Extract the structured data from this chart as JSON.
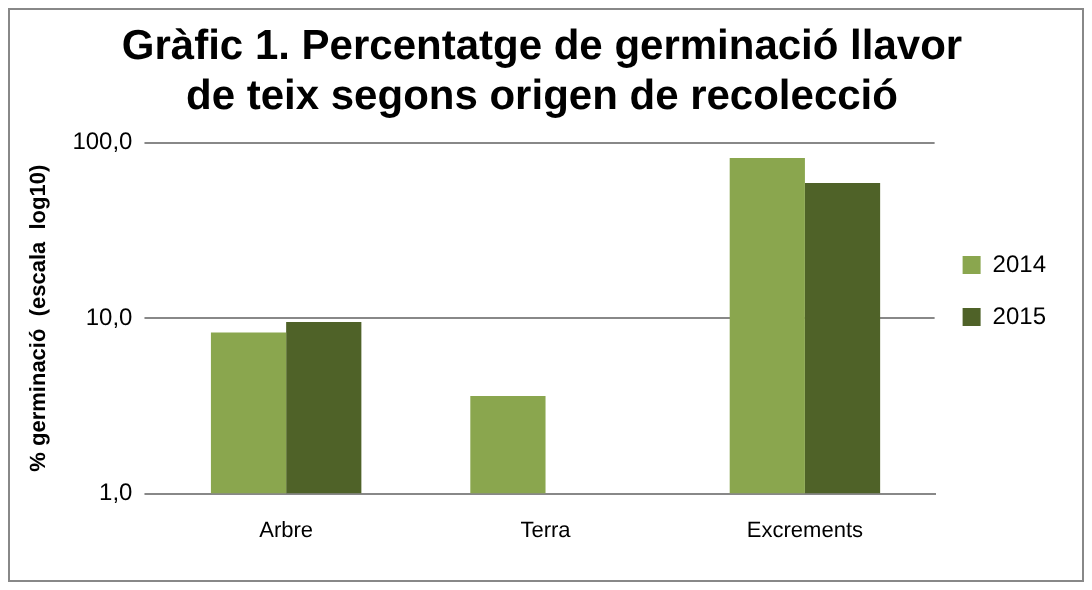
{
  "chart_data": {
    "type": "bar",
    "title": "Gràfic 1. Percentatge de germinació llavor\nde teix segons origen de recolecció",
    "ylabel": "% germinació  (escala  log10)",
    "categories": [
      "Arbre",
      "Terra",
      "Excrements"
    ],
    "series": [
      {
        "name": "2014",
        "color": "#8aa64e",
        "values": [
          8.3,
          3.6,
          82
        ]
      },
      {
        "name": "2015",
        "color": "#4f6228",
        "values": [
          9.5,
          null,
          59
        ]
      }
    ],
    "log": "y",
    "ylim": [
      1,
      100
    ],
    "yticks": [
      {
        "value": 1,
        "label": "1,0"
      },
      {
        "value": 10,
        "label": "10,0"
      },
      {
        "value": 100,
        "label": "100,0"
      }
    ],
    "grid": "y",
    "legend": "right"
  }
}
